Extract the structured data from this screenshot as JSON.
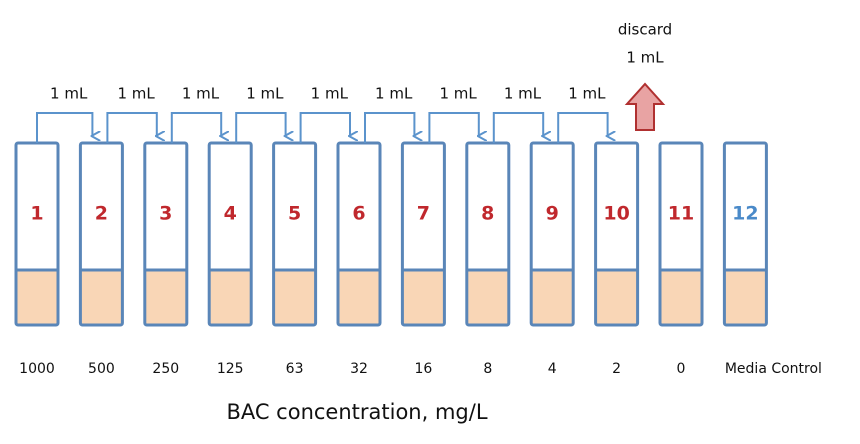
{
  "tubes": [
    {
      "number": 1,
      "concentration": 1000
    },
    {
      "number": 2,
      "concentration": 500
    },
    {
      "number": 3,
      "concentration": 250
    },
    {
      "number": 4,
      "concentration": 125
    },
    {
      "number": 5,
      "concentration": 63
    },
    {
      "number": 6,
      "concentration": 32
    },
    {
      "number": 7,
      "concentration": 16
    },
    {
      "number": 8,
      "concentration": 8
    },
    {
      "number": 9,
      "concentration": 4
    },
    {
      "number": 10,
      "concentration": 2
    },
    {
      "number": 11,
      "concentration": 0
    },
    {
      "number": 12,
      "concentration": "Media Control"
    }
  ],
  "transfers": [
    "1 mL",
    "1 mL",
    "1 mL",
    "1 mL",
    "1 mL",
    "1 mL",
    "1 mL",
    "1 mL",
    "1 mL"
  ],
  "discard": {
    "label": "discard",
    "volume": "1 mL"
  },
  "axis_title": "BAC concentration, mg/L"
}
